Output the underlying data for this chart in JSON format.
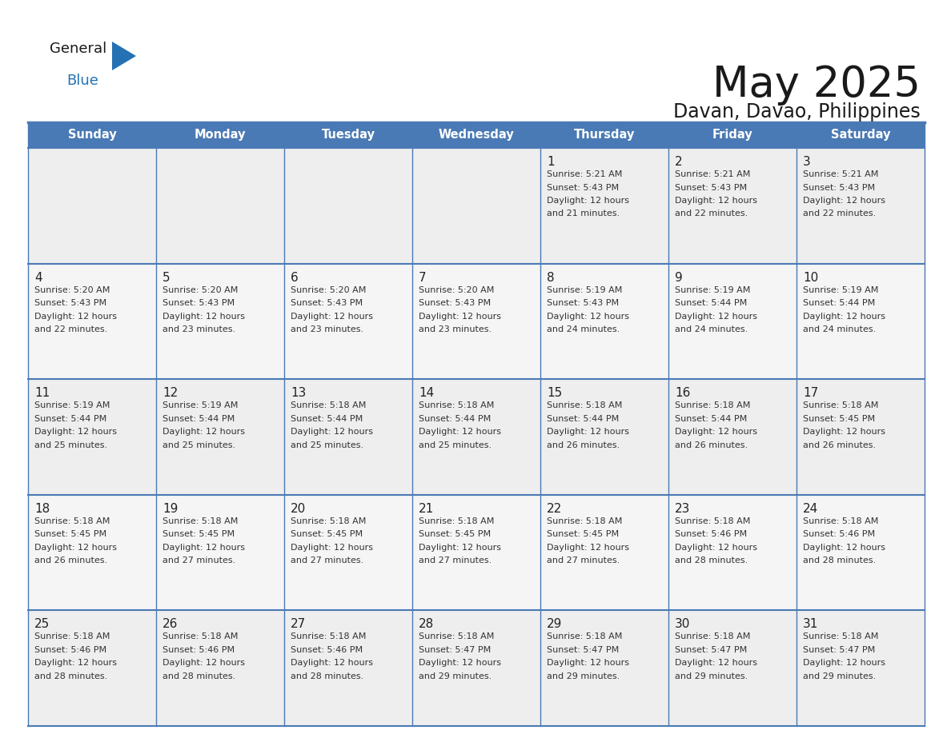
{
  "title": "May 2025",
  "subtitle": "Davan, Davao, Philippines",
  "header_bg": "#4a7ab5",
  "header_text_color": "#FFFFFF",
  "day_names": [
    "Sunday",
    "Monday",
    "Tuesday",
    "Wednesday",
    "Thursday",
    "Friday",
    "Saturday"
  ],
  "title_font_size": 38,
  "subtitle_font_size": 17,
  "bg_color": "#FFFFFF",
  "cell_bg_row0": "#EEEEEE",
  "cell_bg_row1": "#F5F5F5",
  "cell_bg_row2": "#EEEEEE",
  "cell_bg_row3": "#F5F5F5",
  "cell_bg_row4": "#EEEEEE",
  "line_color": "#4a7ab5",
  "date_color": "#222222",
  "text_color": "#333333",
  "logo_general_color": "#1a1a1a",
  "logo_blue_color": "#2472B4",
  "logo_triangle_color": "#2472B4",
  "calendar": [
    [
      null,
      null,
      null,
      null,
      {
        "day": 1,
        "sunrise": "5:21 AM",
        "sunset": "5:43 PM",
        "daylight_hrs": "12 hours",
        "daylight_min": "and 21 minutes."
      },
      {
        "day": 2,
        "sunrise": "5:21 AM",
        "sunset": "5:43 PM",
        "daylight_hrs": "12 hours",
        "daylight_min": "and 22 minutes."
      },
      {
        "day": 3,
        "sunrise": "5:21 AM",
        "sunset": "5:43 PM",
        "daylight_hrs": "12 hours",
        "daylight_min": "and 22 minutes."
      }
    ],
    [
      {
        "day": 4,
        "sunrise": "5:20 AM",
        "sunset": "5:43 PM",
        "daylight_hrs": "12 hours",
        "daylight_min": "and 22 minutes."
      },
      {
        "day": 5,
        "sunrise": "5:20 AM",
        "sunset": "5:43 PM",
        "daylight_hrs": "12 hours",
        "daylight_min": "and 23 minutes."
      },
      {
        "day": 6,
        "sunrise": "5:20 AM",
        "sunset": "5:43 PM",
        "daylight_hrs": "12 hours",
        "daylight_min": "and 23 minutes."
      },
      {
        "day": 7,
        "sunrise": "5:20 AM",
        "sunset": "5:43 PM",
        "daylight_hrs": "12 hours",
        "daylight_min": "and 23 minutes."
      },
      {
        "day": 8,
        "sunrise": "5:19 AM",
        "sunset": "5:43 PM",
        "daylight_hrs": "12 hours",
        "daylight_min": "and 24 minutes."
      },
      {
        "day": 9,
        "sunrise": "5:19 AM",
        "sunset": "5:44 PM",
        "daylight_hrs": "12 hours",
        "daylight_min": "and 24 minutes."
      },
      {
        "day": 10,
        "sunrise": "5:19 AM",
        "sunset": "5:44 PM",
        "daylight_hrs": "12 hours",
        "daylight_min": "and 24 minutes."
      }
    ],
    [
      {
        "day": 11,
        "sunrise": "5:19 AM",
        "sunset": "5:44 PM",
        "daylight_hrs": "12 hours",
        "daylight_min": "and 25 minutes."
      },
      {
        "day": 12,
        "sunrise": "5:19 AM",
        "sunset": "5:44 PM",
        "daylight_hrs": "12 hours",
        "daylight_min": "and 25 minutes."
      },
      {
        "day": 13,
        "sunrise": "5:18 AM",
        "sunset": "5:44 PM",
        "daylight_hrs": "12 hours",
        "daylight_min": "and 25 minutes."
      },
      {
        "day": 14,
        "sunrise": "5:18 AM",
        "sunset": "5:44 PM",
        "daylight_hrs": "12 hours",
        "daylight_min": "and 25 minutes."
      },
      {
        "day": 15,
        "sunrise": "5:18 AM",
        "sunset": "5:44 PM",
        "daylight_hrs": "12 hours",
        "daylight_min": "and 26 minutes."
      },
      {
        "day": 16,
        "sunrise": "5:18 AM",
        "sunset": "5:44 PM",
        "daylight_hrs": "12 hours",
        "daylight_min": "and 26 minutes."
      },
      {
        "day": 17,
        "sunrise": "5:18 AM",
        "sunset": "5:45 PM",
        "daylight_hrs": "12 hours",
        "daylight_min": "and 26 minutes."
      }
    ],
    [
      {
        "day": 18,
        "sunrise": "5:18 AM",
        "sunset": "5:45 PM",
        "daylight_hrs": "12 hours",
        "daylight_min": "and 26 minutes."
      },
      {
        "day": 19,
        "sunrise": "5:18 AM",
        "sunset": "5:45 PM",
        "daylight_hrs": "12 hours",
        "daylight_min": "and 27 minutes."
      },
      {
        "day": 20,
        "sunrise": "5:18 AM",
        "sunset": "5:45 PM",
        "daylight_hrs": "12 hours",
        "daylight_min": "and 27 minutes."
      },
      {
        "day": 21,
        "sunrise": "5:18 AM",
        "sunset": "5:45 PM",
        "daylight_hrs": "12 hours",
        "daylight_min": "and 27 minutes."
      },
      {
        "day": 22,
        "sunrise": "5:18 AM",
        "sunset": "5:45 PM",
        "daylight_hrs": "12 hours",
        "daylight_min": "and 27 minutes."
      },
      {
        "day": 23,
        "sunrise": "5:18 AM",
        "sunset": "5:46 PM",
        "daylight_hrs": "12 hours",
        "daylight_min": "and 28 minutes."
      },
      {
        "day": 24,
        "sunrise": "5:18 AM",
        "sunset": "5:46 PM",
        "daylight_hrs": "12 hours",
        "daylight_min": "and 28 minutes."
      }
    ],
    [
      {
        "day": 25,
        "sunrise": "5:18 AM",
        "sunset": "5:46 PM",
        "daylight_hrs": "12 hours",
        "daylight_min": "and 28 minutes."
      },
      {
        "day": 26,
        "sunrise": "5:18 AM",
        "sunset": "5:46 PM",
        "daylight_hrs": "12 hours",
        "daylight_min": "and 28 minutes."
      },
      {
        "day": 27,
        "sunrise": "5:18 AM",
        "sunset": "5:46 PM",
        "daylight_hrs": "12 hours",
        "daylight_min": "and 28 minutes."
      },
      {
        "day": 28,
        "sunrise": "5:18 AM",
        "sunset": "5:47 PM",
        "daylight_hrs": "12 hours",
        "daylight_min": "and 29 minutes."
      },
      {
        "day": 29,
        "sunrise": "5:18 AM",
        "sunset": "5:47 PM",
        "daylight_hrs": "12 hours",
        "daylight_min": "and 29 minutes."
      },
      {
        "day": 30,
        "sunrise": "5:18 AM",
        "sunset": "5:47 PM",
        "daylight_hrs": "12 hours",
        "daylight_min": "and 29 minutes."
      },
      {
        "day": 31,
        "sunrise": "5:18 AM",
        "sunset": "5:47 PM",
        "daylight_hrs": "12 hours",
        "daylight_min": "and 29 minutes."
      }
    ]
  ]
}
